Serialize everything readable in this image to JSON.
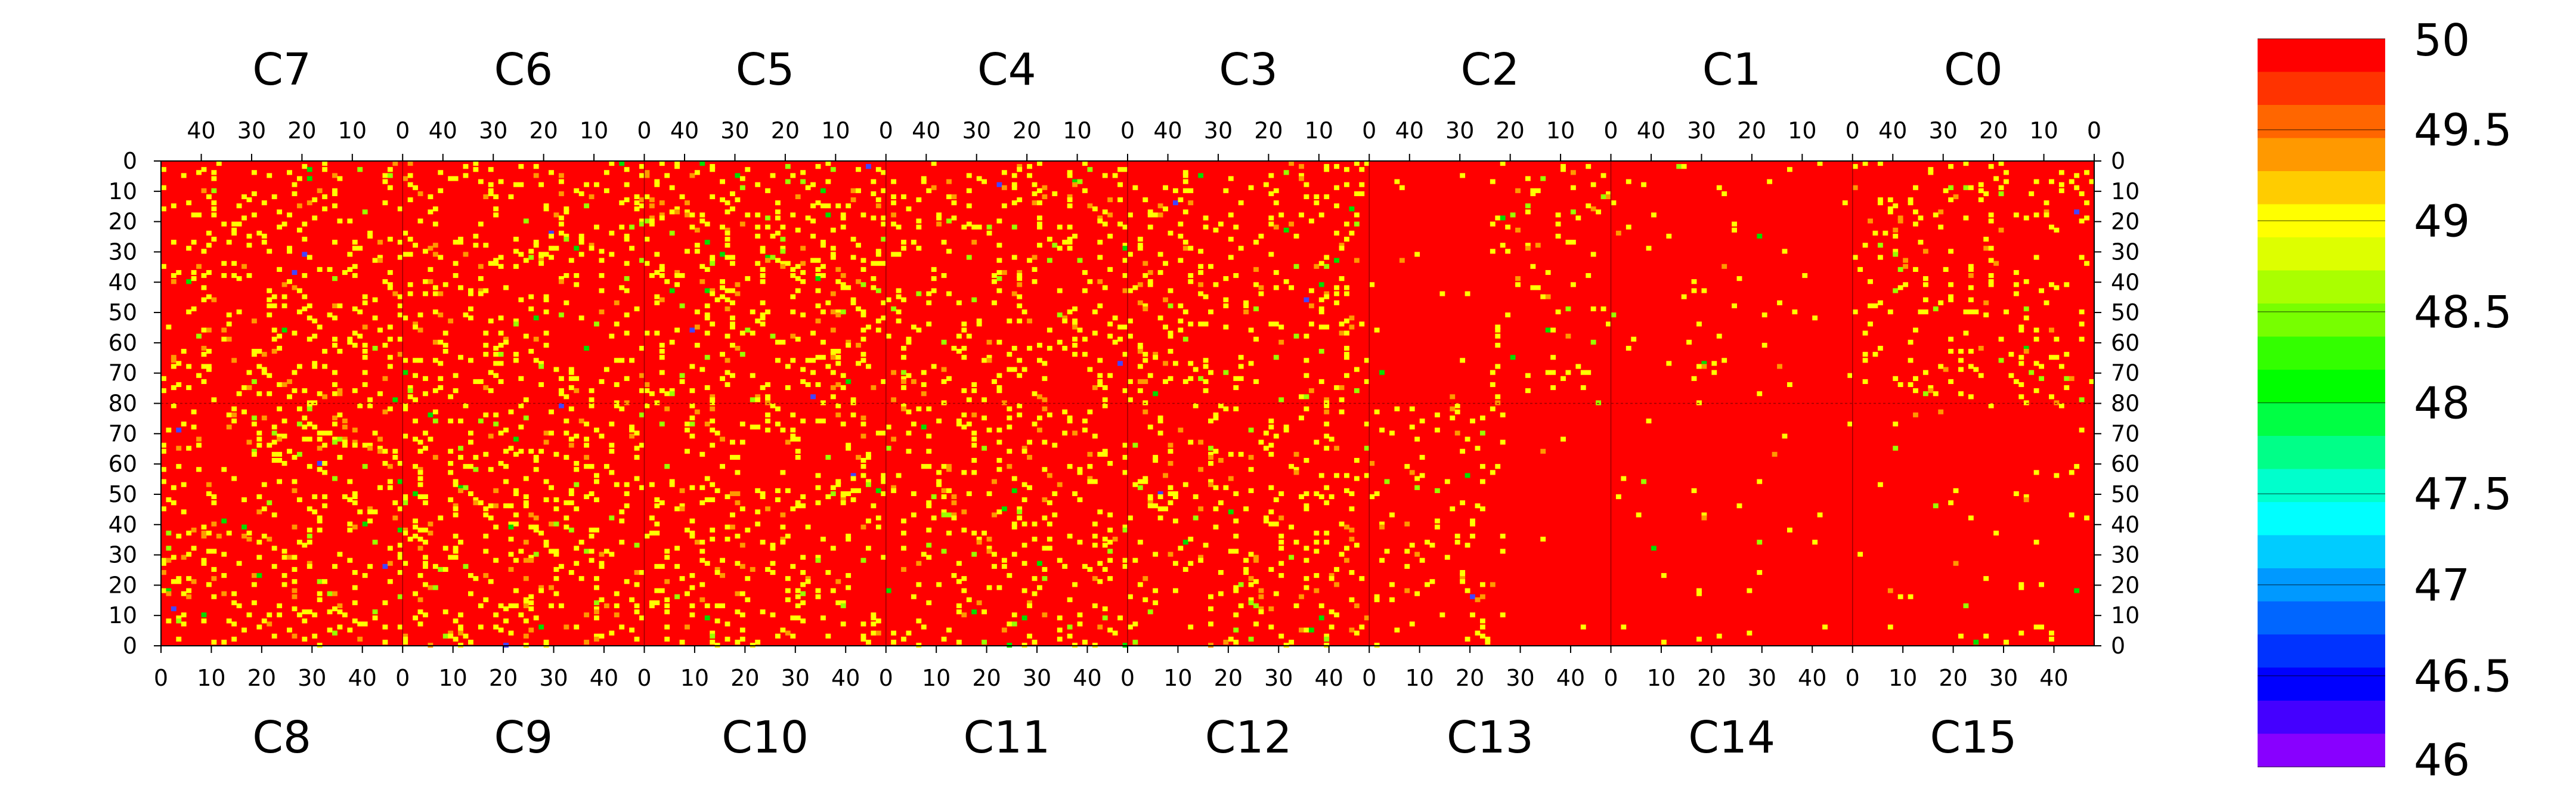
{
  "chart_data": {
    "type": "heatmap",
    "title": "",
    "xlabel": "",
    "ylabel": "",
    "top_panels": [
      "C7",
      "C6",
      "C5",
      "C4",
      "C3",
      "C2",
      "C1",
      "C0"
    ],
    "bottom_panels": [
      "C8",
      "C9",
      "C10",
      "C11",
      "C12",
      "C13",
      "C14",
      "C15"
    ],
    "panel_columns": 48,
    "top_rows": 80,
    "bottom_rows": 80,
    "top_x_ticks": [
      40,
      30,
      20,
      10,
      0
    ],
    "bottom_x_ticks": [
      0,
      10,
      20,
      30,
      40
    ],
    "y_ticks_top_half": [
      0,
      10,
      20,
      30,
      40,
      50,
      60,
      70,
      80
    ],
    "y_ticks_bottom_half": [
      70,
      60,
      50,
      40,
      30,
      20,
      10,
      0
    ],
    "x_axis_end_label": 0,
    "colorbar": {
      "min": 46,
      "max": 50,
      "tick_values": [
        50,
        49.5,
        49,
        48.5,
        48,
        47.5,
        47,
        46.5,
        46
      ],
      "tick_labels": [
        "50",
        "49.5",
        "49",
        "48.5",
        "48",
        "47.5",
        "47",
        "46.5",
        "46"
      ],
      "colors_top_to_bottom": [
        "#ff0000",
        "#ff3300",
        "#ff6600",
        "#ff9900",
        "#ffcc00",
        "#ffff00",
        "#ddff00",
        "#aaff00",
        "#77ff00",
        "#33ff00",
        "#00ff00",
        "#00ff44",
        "#00ff88",
        "#00ffcc",
        "#00ffff",
        "#00ccff",
        "#0099ff",
        "#0066ff",
        "#0033ff",
        "#0000ff",
        "#4400ff",
        "#8800ff"
      ]
    },
    "background_value": 50,
    "background_color": "#ff0000",
    "scattered_values": [
      49,
      48.5,
      48,
      46.8
    ],
    "scattered_colors": [
      "#ffff00",
      "#ff9900",
      "#99ff00",
      "#00dd00",
      "#4444ff"
    ]
  }
}
